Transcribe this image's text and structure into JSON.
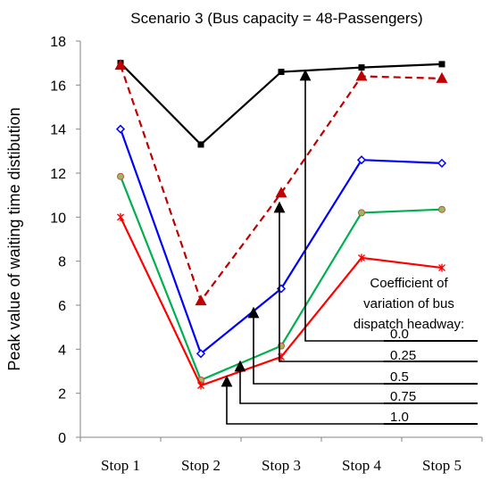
{
  "chart_data": {
    "type": "line",
    "title": "Scenario 3 (Bus capacity = 48-Passengers)",
    "ylabel": "Peak  value of waiting  time distibution",
    "xlabel": "",
    "categories": [
      "Stop 1",
      "Stop 2",
      "Stop 3",
      "Stop 4",
      "Stop 5"
    ],
    "ylim": [
      0,
      18
    ],
    "yticks": [
      "0",
      "2",
      "4",
      "6",
      "8",
      "10",
      "12",
      "14",
      "16",
      "18"
    ],
    "grid": false,
    "annotation_title": [
      "Coefficient of",
      "variation of bus",
      "dispatch headway:"
    ],
    "series": [
      {
        "name": "0.0",
        "values": [
          17.0,
          13.3,
          16.6,
          16.8,
          16.95
        ],
        "color": "#000000",
        "marker": "square",
        "dashed": false
      },
      {
        "name": "0.25",
        "values": [
          16.9,
          6.2,
          11.1,
          16.4,
          16.3
        ],
        "color": "#c00000",
        "marker": "triangle",
        "dashed": true
      },
      {
        "name": "0.5",
        "values": [
          14.0,
          3.8,
          6.75,
          12.6,
          12.45
        ],
        "color": "#0000ff",
        "marker": "diamond",
        "dashed": false
      },
      {
        "name": "0.75",
        "values": [
          11.85,
          2.6,
          4.15,
          10.2,
          10.35
        ],
        "color": "#00b050",
        "marker": "circle",
        "dashed": false
      },
      {
        "name": "1.0",
        "values": [
          10.0,
          2.35,
          3.65,
          8.15,
          7.7
        ],
        "color": "#ff0000",
        "marker": "star",
        "dashed": false
      }
    ]
  }
}
